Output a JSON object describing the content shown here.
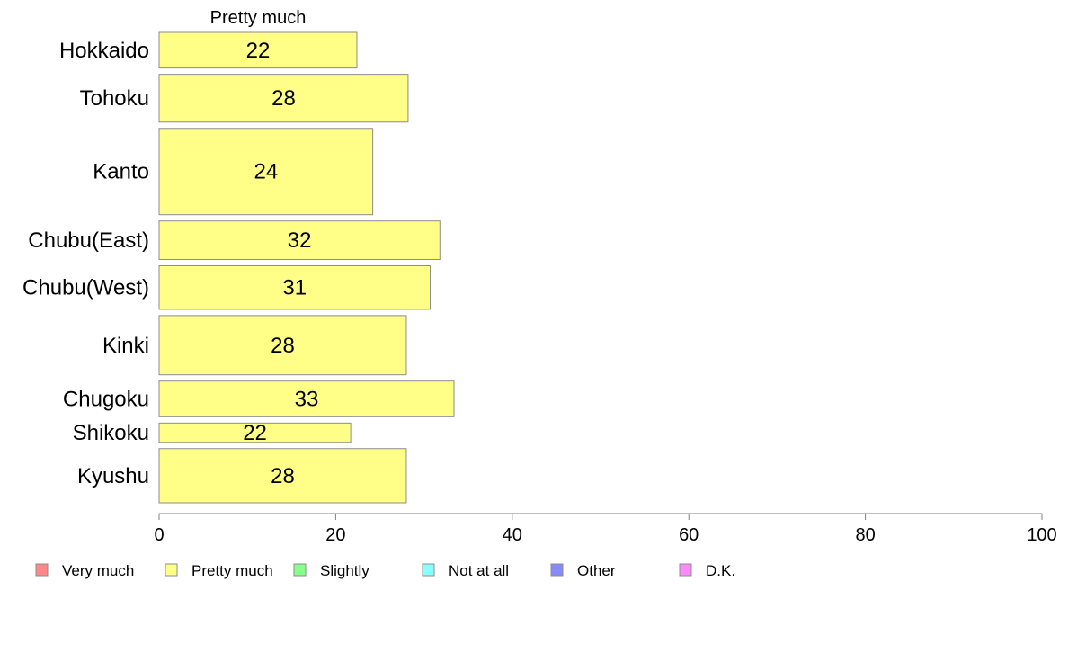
{
  "chart_data": {
    "type": "bar",
    "orientation": "horizontal",
    "stacked": true,
    "categories": [
      "Hokkaido",
      "Tohoku",
      "Kanto",
      "Chubu(East)",
      "Chubu(West)",
      "Kinki",
      "Chugoku",
      "Shikoku",
      "Kyushu"
    ],
    "relative_weights": [
      1,
      1.34,
      2.42,
      1.08,
      1.22,
      1.66,
      1,
      0.54,
      1.52
    ],
    "series": [
      {
        "name": "Pretty much",
        "color": "#ffff88",
        "values": [
          22.4,
          28.2,
          24.2,
          31.8,
          30.7,
          28.0,
          33.4,
          21.7,
          28.0
        ],
        "labels": [
          "22",
          "28",
          "24",
          "32",
          "31",
          "28",
          "33",
          "22",
          "28"
        ]
      }
    ],
    "series_header": "Pretty much",
    "xlim": [
      0,
      100
    ],
    "xticks": [
      "0",
      "20",
      "40",
      "60",
      "80",
      "100"
    ],
    "grid": false,
    "legend_position": "bottom",
    "legend": [
      {
        "label": "Very much",
        "color": "#ff8888"
      },
      {
        "label": "Pretty much",
        "color": "#ffff88"
      },
      {
        "label": "Slightly",
        "color": "#88ff88"
      },
      {
        "label": "Not at all",
        "color": "#88ffff"
      },
      {
        "label": "Other",
        "color": "#8888ff"
      },
      {
        "label": "D.K.",
        "color": "#ff88ff"
      }
    ]
  }
}
